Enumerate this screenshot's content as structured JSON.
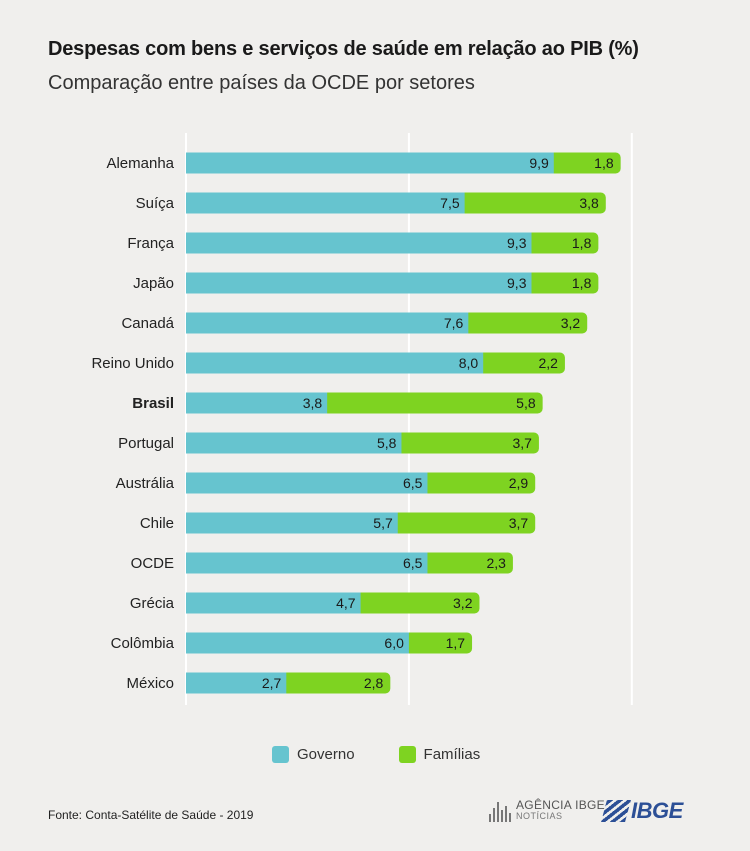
{
  "header": {
    "title": "Despesas com bens e serviços de saúde em relação ao PIB (%)",
    "subtitle": "Comparação entre países da OCDE por setores"
  },
  "colors": {
    "governo": "#66c4cf",
    "familias": "#7ed321"
  },
  "chart_data": {
    "type": "bar",
    "orientation": "horizontal",
    "stacked": true,
    "categories": [
      "Alemanha",
      "Suíça",
      "França",
      "Japão",
      "Canadá",
      "Reino Unido",
      "Brasil",
      "Portugal",
      "Austrália",
      "Chile",
      "OCDE",
      "Grécia",
      "Colômbia",
      "México"
    ],
    "highlight": "Brasil",
    "series": [
      {
        "name": "Governo",
        "values": [
          "9,9",
          "7,5",
          "9,3",
          "9,3",
          "7,6",
          "8,0",
          "3,8",
          "5,8",
          "6,5",
          "5,7",
          "6,5",
          "4,7",
          "6,0",
          "2,7"
        ]
      },
      {
        "name": "Famílias",
        "values": [
          "1,8",
          "3,8",
          "1,8",
          "1,8",
          "3,2",
          "2,2",
          "5,8",
          "3,7",
          "2,9",
          "3,7",
          "2,3",
          "3,2",
          "1,7",
          "2,8"
        ]
      }
    ],
    "xlim": [
      0,
      12
    ],
    "grid": "vertical",
    "legend": "bottom"
  },
  "legend": {
    "governo": "Governo",
    "familias": "Famílias"
  },
  "footer": {
    "source": "Fonte: Conta-Satélite de Saúde - 2019",
    "agencia_line1": "AGÊNCIA IBGE",
    "agencia_line2": "NOTÍCIAS",
    "ibge": "IBGE"
  }
}
